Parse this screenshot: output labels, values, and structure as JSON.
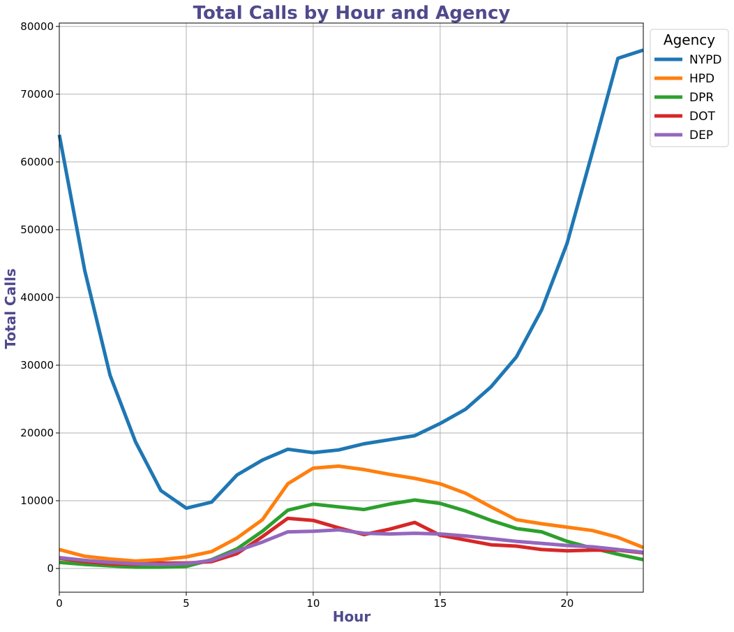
{
  "chart_data": {
    "type": "line",
    "title": "Total Calls by Hour and Agency",
    "xlabel": "Hour",
    "ylabel": "Total Calls",
    "xlim": [
      0,
      23
    ],
    "ylim": [
      -3500,
      80500
    ],
    "xticks": [
      0,
      5,
      10,
      15,
      20
    ],
    "yticks": [
      0,
      10000,
      20000,
      30000,
      40000,
      50000,
      60000,
      70000,
      80000
    ],
    "grid": true,
    "legend": {
      "title": "Agency",
      "placement": "outside-top-right"
    },
    "x": [
      0,
      1,
      2,
      3,
      4,
      5,
      6,
      7,
      8,
      9,
      10,
      11,
      12,
      13,
      14,
      15,
      16,
      17,
      18,
      19,
      20,
      21,
      22,
      23
    ],
    "series": [
      {
        "name": "NYPD",
        "color": "#1f77b4",
        "values": [
          64000,
          44000,
          28500,
          18700,
          11500,
          8900,
          9800,
          13800,
          16000,
          17600,
          17100,
          17500,
          18400,
          19000,
          19600,
          21400,
          23500,
          26800,
          31200,
          38200,
          48000,
          61500,
          75300,
          76500
        ]
      },
      {
        "name": "HPD",
        "color": "#ff7f0e",
        "values": [
          2800,
          1800,
          1400,
          1100,
          1300,
          1700,
          2500,
          4500,
          7200,
          12500,
          14800,
          15100,
          14600,
          13900,
          13300,
          12500,
          11100,
          9100,
          7200,
          6600,
          6100,
          5600,
          4600,
          3100
        ]
      },
      {
        "name": "DPR",
        "color": "#2ca02c",
        "values": [
          900,
          600,
          400,
          200,
          200,
          300,
          1300,
          2900,
          5500,
          8600,
          9500,
          9100,
          8700,
          9500,
          10100,
          9600,
          8500,
          7100,
          5900,
          5400,
          4000,
          3000,
          2100,
          1300
        ]
      },
      {
        "name": "DOT",
        "color": "#d62728",
        "values": [
          1500,
          1000,
          700,
          600,
          800,
          800,
          1000,
          2200,
          4700,
          7400,
          7100,
          6000,
          5000,
          5800,
          6800,
          4900,
          4200,
          3500,
          3300,
          2800,
          2600,
          2700,
          2700,
          2300
        ]
      },
      {
        "name": "DEP",
        "color": "#9467bd",
        "values": [
          1600,
          1200,
          900,
          700,
          600,
          700,
          1200,
          2600,
          3900,
          5400,
          5500,
          5700,
          5200,
          5100,
          5200,
          5100,
          4800,
          4400,
          4000,
          3700,
          3400,
          3200,
          2800,
          2400
        ]
      }
    ]
  }
}
